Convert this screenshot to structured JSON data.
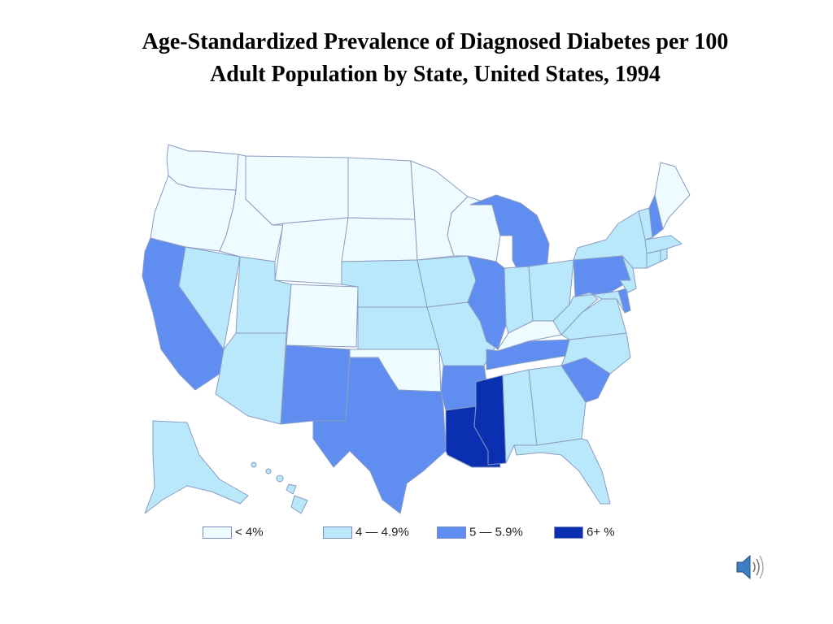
{
  "title": {
    "line1": "Age-Standardized Prevalence of Diagnosed Diabetes per 100",
    "line2": "Adult Population by State, United States, 1994"
  },
  "colors": {
    "lt4": "#eefbff",
    "c4to49": "#b9e8fb",
    "c5to59": "#5f8ef0",
    "c6plus": "#0a2fb0",
    "border": "#8a9cc2"
  },
  "legend": [
    {
      "key": "lt4",
      "label": "< 4%"
    },
    {
      "key": "c4to49",
      "label": "4 — 4.9%"
    },
    {
      "key": "c5to59",
      "label": "5 — 5.9%"
    },
    {
      "key": "c6plus",
      "label": "6+ %"
    }
  ],
  "states": {
    "WA": "lt4",
    "OR": "lt4",
    "ID": "lt4",
    "MT": "lt4",
    "WY": "lt4",
    "ND": "lt4",
    "SD": "lt4",
    "MN": "lt4",
    "WI": "lt4",
    "CO": "lt4",
    "OK": "lt4",
    "KY": "lt4",
    "ME": "lt4",
    "NV": "c4to49",
    "UT": "c4to49",
    "AZ": "c4to49",
    "NE": "c4to49",
    "KS": "c4to49",
    "IA": "c4to49",
    "MO": "c4to49",
    "IN": "c4to49",
    "OH": "c4to49",
    "WV": "c4to49",
    "VA": "c4to49",
    "NC": "c4to49",
    "AL": "c4to49",
    "GA": "c4to49",
    "FL": "c4to49",
    "NY": "c4to49",
    "VT": "c4to49",
    "MA": "c4to49",
    "CT": "c4to49",
    "RI": "c4to49",
    "NJ": "c4to49",
    "MD": "c4to49",
    "AK": "c4to49",
    "HI": "c4to49",
    "CA": "c5to59",
    "NM": "c5to59",
    "TX": "c5to59",
    "AR": "c5to59",
    "TN": "c5to59",
    "IL": "c5to59",
    "MI": "c5to59",
    "PA": "c5to59",
    "SC": "c5to59",
    "NH": "c5to59",
    "DE": "c5to59",
    "LA": "c6plus",
    "MS": "c6plus"
  },
  "sound_icon": "speaker-icon"
}
